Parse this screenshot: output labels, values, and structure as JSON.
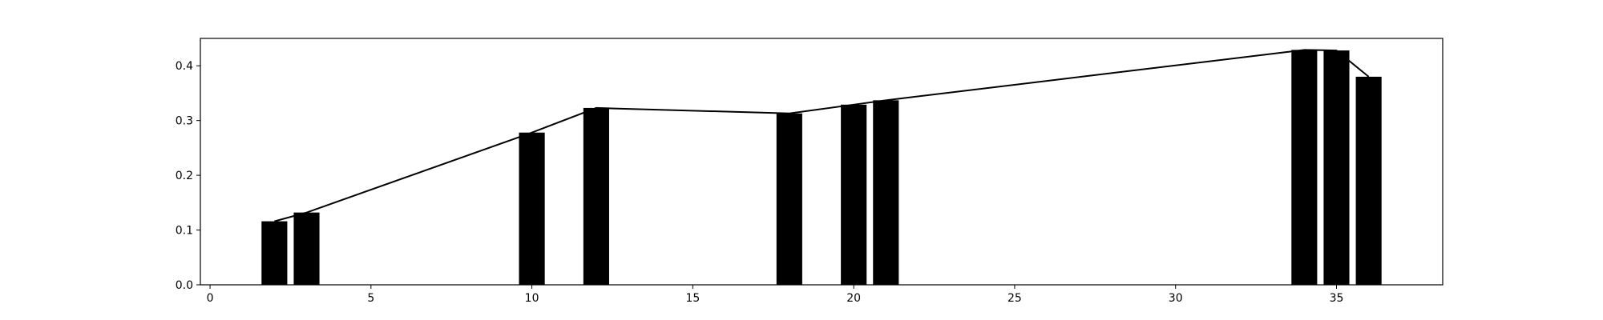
{
  "chart_data": {
    "type": "bar",
    "title": "",
    "xlabel": "",
    "ylabel": "",
    "xlim": [
      -0.3,
      38.3
    ],
    "ylim": [
      0.0,
      0.45
    ],
    "xticks": [
      0,
      5,
      10,
      15,
      20,
      25,
      30,
      35
    ],
    "yticks": [
      0.0,
      0.1,
      0.2,
      0.3,
      0.4
    ],
    "xtick_labels": [
      "0",
      "5",
      "10",
      "15",
      "20",
      "25",
      "30",
      "35"
    ],
    "ytick_labels": [
      "0.0",
      "0.1",
      "0.2",
      "0.3",
      "0.4"
    ],
    "bar_width": 0.8,
    "bar_color": "#000000",
    "line_color": "#000000",
    "grid": false,
    "x": [
      2,
      3,
      10,
      12,
      18,
      20,
      21,
      34,
      35,
      36
    ],
    "values": [
      0.116,
      0.132,
      0.278,
      0.323,
      0.313,
      0.329,
      0.337,
      0.429,
      0.428,
      0.38
    ]
  }
}
